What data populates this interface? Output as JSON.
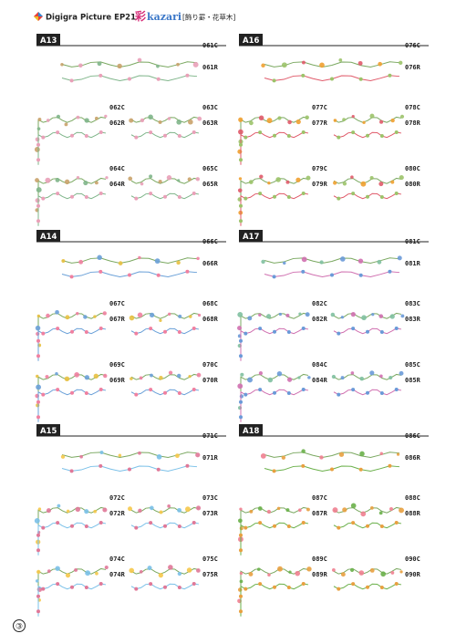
{
  "header": {
    "brand": "Digigra Picture EP21",
    "logo_kanji": "彩",
    "logo_latin": "kazari",
    "subtitle": "[飾り罫・花草木]"
  },
  "sections": [
    {
      "label": "A13",
      "items": [
        [
          "061C",
          "061R"
        ],
        [
          "062C",
          "062R"
        ],
        [
          "063C",
          "063R"
        ],
        [
          "064C",
          "064R"
        ],
        [
          "065C",
          "065R"
        ]
      ]
    },
    {
      "label": "A16",
      "items": [
        [
          "076C",
          "076R"
        ],
        [
          "077C",
          "077R"
        ],
        [
          "078C",
          "078R"
        ],
        [
          "079C",
          "079R"
        ],
        [
          "080C",
          "080R"
        ]
      ]
    },
    {
      "label": "A14",
      "items": [
        [
          "066C",
          "066R"
        ],
        [
          "067C",
          "067R"
        ],
        [
          "068C",
          "068R"
        ],
        [
          "069C",
          "069R"
        ],
        [
          "070C",
          "070R"
        ]
      ]
    },
    {
      "label": "A17",
      "items": [
        [
          "081C",
          "081R"
        ],
        [
          "082C",
          "082R"
        ],
        [
          "083C",
          "083R"
        ],
        [
          "084C",
          "084R"
        ],
        [
          "085C",
          "085R"
        ]
      ]
    },
    {
      "label": "A15",
      "items": [
        [
          "071C",
          "071R"
        ],
        [
          "072C",
          "072R"
        ],
        [
          "073C",
          "073R"
        ],
        [
          "074C",
          "074R"
        ],
        [
          "075C",
          "075R"
        ]
      ]
    },
    {
      "label": "A18",
      "items": [
        [
          "086C",
          "086R"
        ],
        [
          "087C",
          "087R"
        ],
        [
          "088C",
          "088R"
        ],
        [
          "089C",
          "089R"
        ],
        [
          "090C",
          "090R"
        ]
      ]
    }
  ],
  "page_number": "③"
}
